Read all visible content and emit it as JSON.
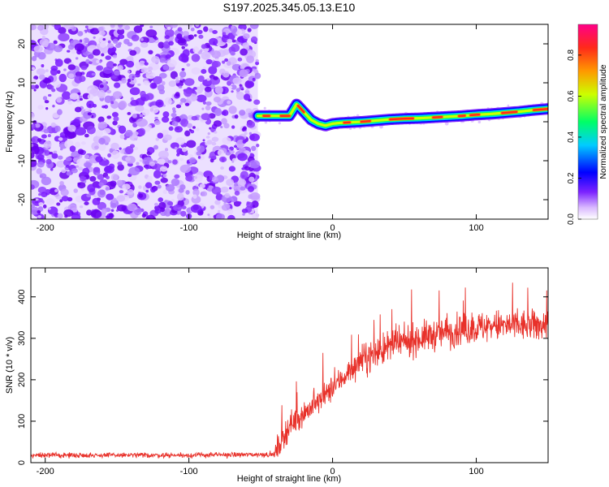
{
  "title": "S197.2025.345.05.13.E10",
  "chart_data": [
    {
      "type": "heatmap",
      "name": "spectrogram",
      "xlabel": "Height of straight line (km)",
      "ylabel": "Frequency (Hz)",
      "xlim": [
        -210,
        150
      ],
      "ylim": [
        -25,
        25
      ],
      "xticks": [
        -200,
        -100,
        0,
        100
      ],
      "yticks": [
        -20,
        -10,
        0,
        10,
        20
      ],
      "noise_region_x": [
        -210,
        -52
      ],
      "ridge": {
        "x": [
          -52,
          -40,
          -30,
          -25,
          -20,
          -15,
          -10,
          -5,
          0,
          5,
          10,
          20,
          30,
          40,
          50,
          60,
          70,
          80,
          90,
          100,
          110,
          120,
          130,
          140,
          150
        ],
        "frequency_hz": [
          1.5,
          1.5,
          1.5,
          4.5,
          2.5,
          0.5,
          -0.5,
          -1.0,
          -0.5,
          -0.3,
          -0.2,
          0.0,
          0.3,
          0.6,
          0.8,
          0.9,
          1.1,
          1.3,
          1.5,
          1.8,
          2.0,
          2.3,
          2.6,
          3.0,
          3.3
        ]
      },
      "colorbar": {
        "label": "Normalized spectral amplitude",
        "range": [
          0,
          0.95
        ],
        "ticks": [
          0.0,
          0.2,
          0.4,
          0.6,
          0.8
        ]
      }
    },
    {
      "type": "line",
      "name": "snr",
      "xlabel": "Height of straight line (km)",
      "ylabel": "SNR (10 * v/v)",
      "xlim": [
        -210,
        150
      ],
      "ylim": [
        0,
        470
      ],
      "xticks": [
        -200,
        -100,
        0,
        100
      ],
      "yticks": [
        0,
        100,
        200,
        300,
        400
      ],
      "color": "#e8312a",
      "trend": {
        "x": [
          -210,
          -100,
          -40,
          -39,
          -30,
          -20,
          -10,
          0,
          10,
          20,
          30,
          40,
          50,
          60,
          70,
          80,
          90,
          100,
          110,
          120,
          130,
          140,
          150
        ],
        "y": [
          18,
          18,
          20,
          30,
          90,
          120,
          145,
          180,
          215,
          245,
          265,
          280,
          290,
          300,
          308,
          315,
          320,
          325,
          330,
          330,
          330,
          330,
          335
        ]
      }
    }
  ]
}
